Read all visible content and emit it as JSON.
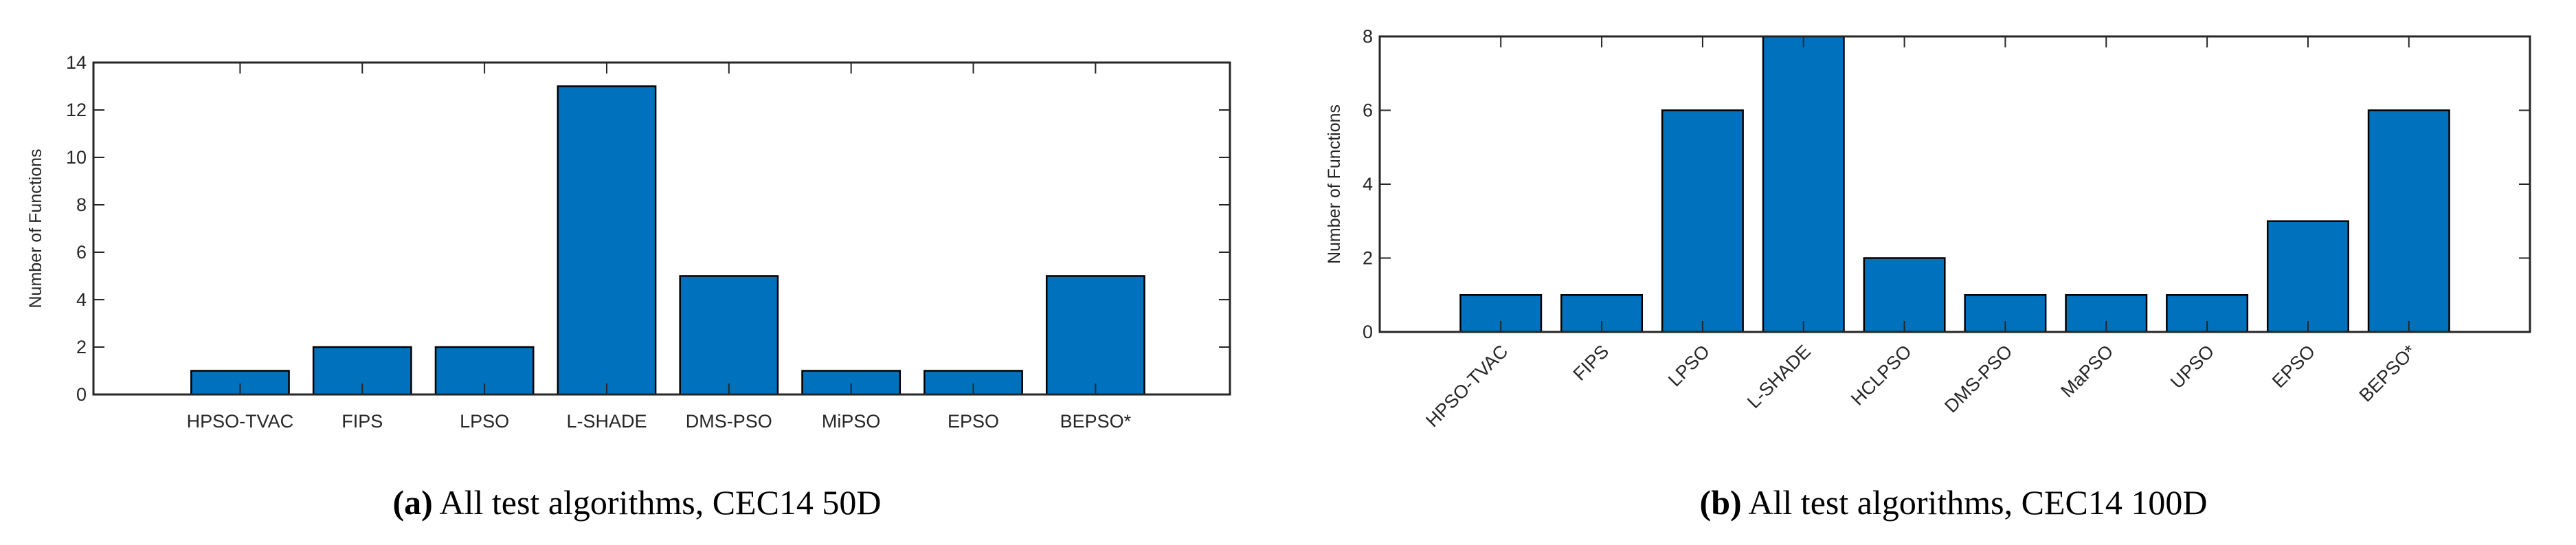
{
  "chart_data": [
    {
      "type": "bar",
      "caption_label": "(a)",
      "caption_text": "All test algorithms, CEC14 50D",
      "ylabel": "Number of Functions",
      "xlabel": "",
      "categories": [
        "HPSO-TVAC",
        "FIPS",
        "LPSO",
        "L-SHADE",
        "DMS-PSO",
        "MiPSO",
        "EPSO",
        "BEPSO*"
      ],
      "values": [
        1,
        2,
        2,
        13,
        5,
        1,
        1,
        5
      ],
      "ylim": [
        0,
        14
      ],
      "yticks": [
        0,
        2,
        4,
        6,
        8,
        10,
        12,
        14
      ],
      "xlim": [
        -0.2,
        9.1
      ],
      "label_rotation": 0,
      "grid": false,
      "bar_color": "#0072BD"
    },
    {
      "type": "bar",
      "caption_label": "(b)",
      "caption_text": "All test algorithms, CEC14 100D",
      "ylabel": "Number of Functions",
      "xlabel": "",
      "categories": [
        "HPSO-TVAC",
        "FIPS",
        "LPSO",
        "L-SHADE",
        "HCLPSO",
        "DMS-PSO",
        "MaPSO",
        "UPSO",
        "EPSO",
        "BEPSO*"
      ],
      "values": [
        1,
        1,
        6,
        8,
        2,
        1,
        1,
        1,
        3,
        6
      ],
      "ylim": [
        0,
        8
      ],
      "yticks": [
        0,
        2,
        4,
        6,
        8
      ],
      "xlim": [
        -0.2,
        11.2
      ],
      "label_rotation": -45,
      "grid": false,
      "bar_color": "#0072BD"
    }
  ]
}
